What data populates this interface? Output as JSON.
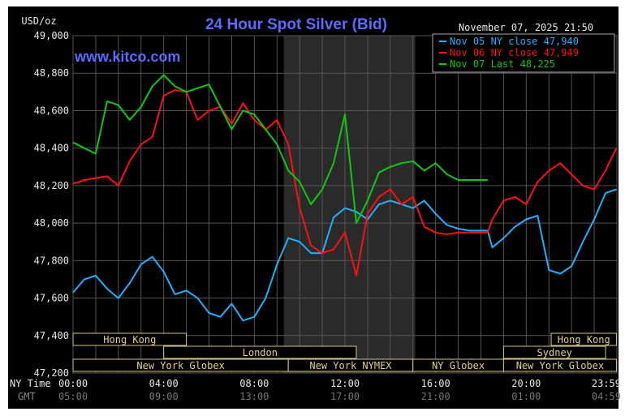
{
  "chart_data": {
    "type": "line",
    "title": "24 Hour Spot Silver (Bid)",
    "timestamp": "November 07, 2025 21:50",
    "watermark": "www.kitco.com",
    "ylabel": "USD/oz",
    "ylim": [
      47.2,
      49.0
    ],
    "xlim": [
      0,
      24
    ],
    "grid": true,
    "legend_position": "top-right",
    "yticks": [
      "49,000",
      "48,800",
      "48,600",
      "48,400",
      "48,200",
      "48,000",
      "47,800",
      "47,600",
      "47,400",
      "47,200"
    ],
    "xaxis": {
      "ny_label": "NY Time",
      "gmt_label": "GMT",
      "ny_ticks": [
        "00:00",
        "04:00",
        "08:00",
        "12:00",
        "16:00",
        "20:00",
        "23:59"
      ],
      "gmt_ticks": [
        "05:00",
        "09:00",
        "13:00",
        "17:00",
        "21:00",
        "01:00",
        "04:59"
      ]
    },
    "sessions": [
      {
        "label": "Hong Kong",
        "row": 0,
        "start": 0,
        "end": 5.0
      },
      {
        "label": "Hong Kong",
        "row": 0,
        "start": 21.1,
        "end": 23.98
      },
      {
        "label": "London",
        "row": 1,
        "start": 4.0,
        "end": 12.5
      },
      {
        "label": "Sydney",
        "row": 1,
        "start": 19.0,
        "end": 23.5
      },
      {
        "label": "New York Globex",
        "row": 2,
        "start": 0,
        "end": 9.5
      },
      {
        "label": "New York NYMEX",
        "row": 2,
        "start": 9.5,
        "end": 15.0
      },
      {
        "label": "NY Globex",
        "row": 2,
        "start": 15.0,
        "end": 19.0
      },
      {
        "label": "New York Globex",
        "row": 2,
        "start": 19.0,
        "end": 23.98
      }
    ],
    "shaded_region": [
      9.3,
      15.1
    ],
    "series": [
      {
        "name": "Nov 05 NY close 47,940",
        "color": "#1fb0ff",
        "x": [
          0,
          0.5,
          1.0,
          1.5,
          2.0,
          2.5,
          3.0,
          3.5,
          4.0,
          4.5,
          5.0,
          5.5,
          6.0,
          6.5,
          7.0,
          7.5,
          8.0,
          8.5,
          9.0,
          9.5,
          10.0,
          10.5,
          11.0,
          11.5,
          12.0,
          12.5,
          13.0,
          13.5,
          14.0,
          14.5,
          15.0,
          15.5,
          16.0,
          16.5,
          17.0,
          17.5,
          18.0,
          18.3,
          18.5,
          19.0,
          19.5,
          20.0,
          20.5,
          21.0,
          21.5,
          22.0,
          22.5,
          23.0,
          23.5,
          23.98
        ],
        "values": [
          47.63,
          47.7,
          47.72,
          47.65,
          47.6,
          47.68,
          47.78,
          47.82,
          47.74,
          47.62,
          47.64,
          47.6,
          47.52,
          47.5,
          47.57,
          47.48,
          47.5,
          47.6,
          47.78,
          47.92,
          47.9,
          47.84,
          47.84,
          48.03,
          48.08,
          48.06,
          48.02,
          48.1,
          48.12,
          48.1,
          48.08,
          48.12,
          48.05,
          47.99,
          47.97,
          47.96,
          47.96,
          47.96,
          47.87,
          47.92,
          47.98,
          48.02,
          48.04,
          47.75,
          47.73,
          47.77,
          47.9,
          48.02,
          48.16,
          48.18
        ]
      },
      {
        "name": "Nov 06 NY close 47,949",
        "color": "#ff1010",
        "x": [
          0,
          0.5,
          1.0,
          1.5,
          2.0,
          2.5,
          3.0,
          3.5,
          4.0,
          4.5,
          5.0,
          5.5,
          6.0,
          6.5,
          7.0,
          7.5,
          8.0,
          8.5,
          9.0,
          9.5,
          10.0,
          10.5,
          11.0,
          11.5,
          12.0,
          12.5,
          13.0,
          13.5,
          14.0,
          14.5,
          15.0,
          15.5,
          16.0,
          16.5,
          17.0,
          17.5,
          18.0,
          18.3,
          18.5,
          19.0,
          19.5,
          20.0,
          20.5,
          21.0,
          21.5,
          22.0,
          22.5,
          23.0,
          23.5,
          23.98
        ],
        "values": [
          48.21,
          48.23,
          48.24,
          48.25,
          48.2,
          48.33,
          48.42,
          48.46,
          48.68,
          48.71,
          48.7,
          48.55,
          48.6,
          48.62,
          48.53,
          48.64,
          48.55,
          48.5,
          48.55,
          48.42,
          48.08,
          47.88,
          47.84,
          47.86,
          47.95,
          47.72,
          48.05,
          48.14,
          48.18,
          48.1,
          48.14,
          47.98,
          47.95,
          47.94,
          47.95,
          47.95,
          47.95,
          47.95,
          48.02,
          48.12,
          48.14,
          48.1,
          48.22,
          48.28,
          48.32,
          48.26,
          48.2,
          48.18,
          48.28,
          48.4
        ]
      },
      {
        "name": "Nov 07 Last 48,225",
        "color": "#10c810",
        "x": [
          0,
          0.5,
          1.0,
          1.5,
          2.0,
          2.5,
          3.0,
          3.5,
          4.0,
          4.5,
          5.0,
          5.5,
          6.0,
          6.5,
          7.0,
          7.5,
          8.0,
          8.5,
          9.0,
          9.5,
          10.0,
          10.5,
          11.0,
          11.5,
          12.0,
          12.5,
          13.0,
          13.5,
          14.0,
          14.5,
          15.0,
          15.5,
          16.0,
          16.5,
          17.0,
          17.5,
          18.0,
          18.3
        ],
        "values": [
          48.43,
          48.4,
          48.37,
          48.65,
          48.63,
          48.55,
          48.62,
          48.73,
          48.79,
          48.73,
          48.7,
          48.72,
          48.74,
          48.62,
          48.5,
          48.6,
          48.58,
          48.5,
          48.42,
          48.28,
          48.22,
          48.1,
          48.18,
          48.32,
          48.58,
          48.0,
          48.12,
          48.27,
          48.3,
          48.32,
          48.33,
          48.28,
          48.32,
          48.26,
          48.23,
          48.23,
          48.23,
          48.23
        ]
      }
    ]
  }
}
